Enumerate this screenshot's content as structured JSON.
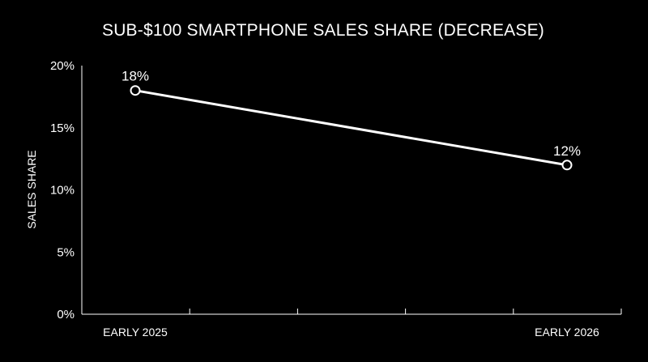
{
  "chart_data": {
    "type": "line",
    "title": "SUB-$100 SMARTPHONE SALES SHARE (DECREASE)",
    "xlabel": "",
    "ylabel": "SALES SHARE",
    "categories": [
      "EARLY 2025",
      "EARLY 2026"
    ],
    "series": [
      {
        "values": [
          18,
          12
        ],
        "data_labels": [
          "18%",
          "12%"
        ]
      }
    ],
    "ylim": [
      0,
      20
    ],
    "yticks": [
      0,
      5,
      10,
      15,
      20
    ],
    "ytick_labels": [
      "0%",
      "5%",
      "10%",
      "15%",
      "20%"
    ],
    "grid": false,
    "legend": "none",
    "colors": {
      "background": "#000000",
      "line": "#ffffff",
      "marker_fill": "#000000",
      "text": "#ffffff"
    }
  }
}
